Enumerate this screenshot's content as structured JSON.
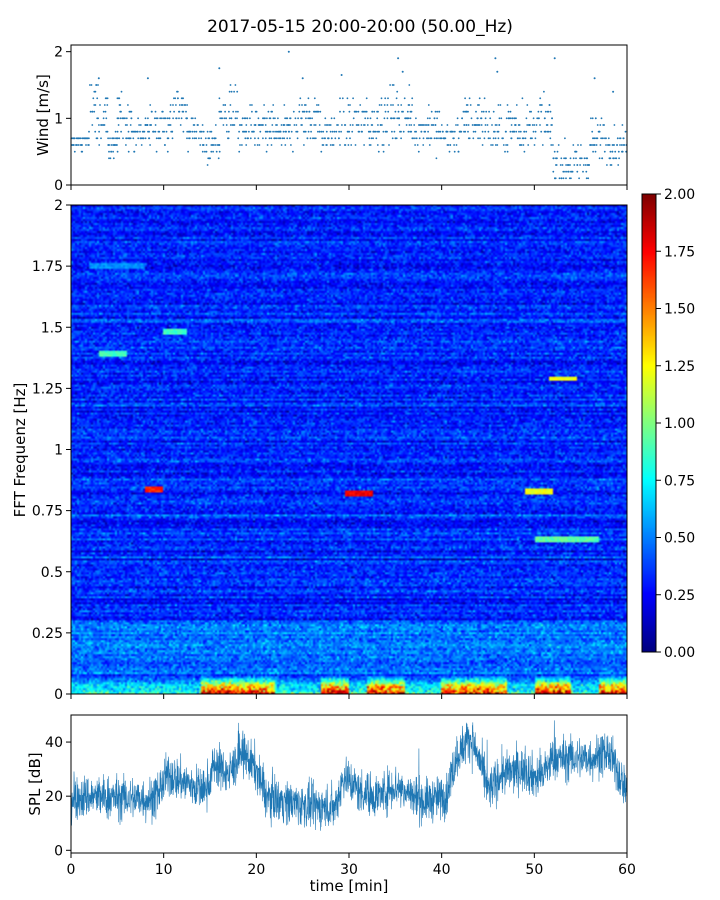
{
  "title": "2017-05-15 20:00-20:00 (50.00_Hz)",
  "chart_data": [
    {
      "type": "scatter",
      "name": "wind",
      "ylabel": "Wind [m/s]",
      "xlim": [
        0,
        60
      ],
      "ylim": [
        0,
        2.1
      ],
      "yticks": [
        0,
        1,
        2
      ],
      "ytick_labels": [
        "0",
        "1",
        "2"
      ],
      "color": "#1f77b4",
      "segments": [
        {
          "x": [
            0,
            2
          ],
          "base": 0.65,
          "spread": 0.15
        },
        {
          "x": [
            2,
            4
          ],
          "base": 1.1,
          "spread": 0.4
        },
        {
          "x": [
            4,
            5
          ],
          "base": 0.6,
          "spread": 0.2
        },
        {
          "x": [
            5,
            6.5
          ],
          "base": 1.0,
          "spread": 0.4
        },
        {
          "x": [
            6.5,
            8
          ],
          "base": 0.75,
          "spread": 0.2
        },
        {
          "x": [
            8,
            11
          ],
          "base": 0.9,
          "spread": 0.3
        },
        {
          "x": [
            11,
            12.5
          ],
          "base": 1.15,
          "spread": 0.3
        },
        {
          "x": [
            12.5,
            14
          ],
          "base": 0.8,
          "spread": 0.2
        },
        {
          "x": [
            14,
            16
          ],
          "base": 0.6,
          "spread": 0.25
        },
        {
          "x": [
            16,
            18
          ],
          "base": 1.05,
          "spread": 0.35
        },
        {
          "x": [
            18,
            20
          ],
          "base": 0.85,
          "spread": 0.3
        },
        {
          "x": [
            20,
            24
          ],
          "base": 0.8,
          "spread": 0.3
        },
        {
          "x": [
            24,
            27
          ],
          "base": 1.0,
          "spread": 0.35
        },
        {
          "x": [
            27,
            29
          ],
          "base": 0.75,
          "spread": 0.25
        },
        {
          "x": [
            29,
            33
          ],
          "base": 0.9,
          "spread": 0.35
        },
        {
          "x": [
            33,
            37
          ],
          "base": 1.0,
          "spread": 0.4
        },
        {
          "x": [
            37,
            40
          ],
          "base": 0.85,
          "spread": 0.3
        },
        {
          "x": [
            40,
            42
          ],
          "base": 0.7,
          "spread": 0.25
        },
        {
          "x": [
            42,
            45
          ],
          "base": 0.95,
          "spread": 0.35
        },
        {
          "x": [
            45,
            47
          ],
          "base": 0.8,
          "spread": 0.3
        },
        {
          "x": [
            47,
            52
          ],
          "base": 0.9,
          "spread": 0.35
        },
        {
          "x": [
            52,
            56
          ],
          "base": 0.3,
          "spread": 0.25
        },
        {
          "x": [
            56,
            58
          ],
          "base": 0.7,
          "spread": 0.3
        },
        {
          "x": [
            58,
            60
          ],
          "base": 0.6,
          "spread": 0.25
        }
      ],
      "outliers": [
        [
          23.5,
          2.0
        ],
        [
          35.3,
          1.9
        ],
        [
          45.8,
          1.9
        ],
        [
          52.2,
          1.9
        ],
        [
          16.0,
          1.75
        ],
        [
          25.0,
          1.6
        ],
        [
          29.2,
          1.65
        ],
        [
          35.8,
          1.7
        ],
        [
          46.0,
          1.7
        ],
        [
          58.5,
          1.4
        ],
        [
          3.0,
          1.6
        ],
        [
          8.3,
          1.6
        ],
        [
          56.5,
          1.6
        ]
      ]
    },
    {
      "type": "heatmap",
      "name": "spectrogram",
      "ylabel": "FFT Frequenz [Hz]",
      "xlim": [
        0,
        60
      ],
      "ylim": [
        0,
        2
      ],
      "yticks": [
        0,
        0.25,
        0.5,
        0.75,
        1,
        1.25,
        1.5,
        1.75,
        2
      ],
      "ytick_labels": [
        "0",
        "0.25",
        "0.5",
        "0.75",
        "1",
        "1.25",
        "1.5",
        "1.75",
        "2"
      ],
      "colormap": "jet",
      "vmin": 0,
      "vmax": 2,
      "colorbar_ticks": [
        "0.00",
        "0.25",
        "0.50",
        "0.75",
        "1.00",
        "1.25",
        "1.50",
        "1.75",
        "2.00"
      ],
      "hotspots": [
        {
          "x": [
            8,
            10
          ],
          "f": 0.84,
          "value": 1.75
        },
        {
          "x": [
            29.5,
            32.5
          ],
          "f": 0.82,
          "value": 1.85
        },
        {
          "x": [
            49,
            52
          ],
          "f": 0.83,
          "value": 1.3
        },
        {
          "x": [
            51.5,
            54.5
          ],
          "f": 1.29,
          "value": 1.3
        },
        {
          "x": [
            10,
            12.5
          ],
          "f": 1.48,
          "value": 0.95
        },
        {
          "x": [
            3,
            6
          ],
          "f": 1.39,
          "value": 0.95
        },
        {
          "x": [
            50,
            57
          ],
          "f": 0.63,
          "value": 1.0
        },
        {
          "x": [
            2,
            8
          ],
          "f": 1.75,
          "value": 0.6
        }
      ],
      "low_freq_bursts": [
        [
          14,
          22
        ],
        [
          27,
          30
        ],
        [
          32,
          36
        ],
        [
          40,
          47
        ],
        [
          50,
          54
        ],
        [
          57,
          60
        ]
      ]
    },
    {
      "type": "line",
      "name": "spl",
      "ylabel": "SPL [dB]",
      "xlabel": "time [min]",
      "xlim": [
        0,
        60
      ],
      "ylim": [
        -1,
        50
      ],
      "yticks": [
        0,
        20,
        40
      ],
      "ytick_labels": [
        "0",
        "20",
        "40"
      ],
      "xticks": [
        0,
        10,
        20,
        30,
        40,
        50,
        60
      ],
      "xtick_labels": [
        "0",
        "10",
        "20",
        "30",
        "40",
        "50",
        "60"
      ],
      "color": "#1f77b4",
      "trend": [
        [
          0,
          20
        ],
        [
          9,
          19
        ],
        [
          10.5,
          28
        ],
        [
          13,
          24
        ],
        [
          14.5,
          22
        ],
        [
          15.5,
          32
        ],
        [
          17,
          28
        ],
        [
          18.5,
          36
        ],
        [
          20,
          30
        ],
        [
          21,
          20
        ],
        [
          26,
          16
        ],
        [
          28.5,
          16
        ],
        [
          29.5,
          28
        ],
        [
          31,
          22
        ],
        [
          33,
          20
        ],
        [
          35,
          24
        ],
        [
          38,
          18
        ],
        [
          40.5,
          20
        ],
        [
          41.5,
          34
        ],
        [
          43,
          42
        ],
        [
          44,
          34
        ],
        [
          45,
          22
        ],
        [
          46.5,
          28
        ],
        [
          49,
          30
        ],
        [
          50.5,
          26
        ],
        [
          52,
          34
        ],
        [
          56,
          34
        ],
        [
          58,
          36
        ],
        [
          60,
          22
        ]
      ],
      "noise_spread": 5
    }
  ]
}
